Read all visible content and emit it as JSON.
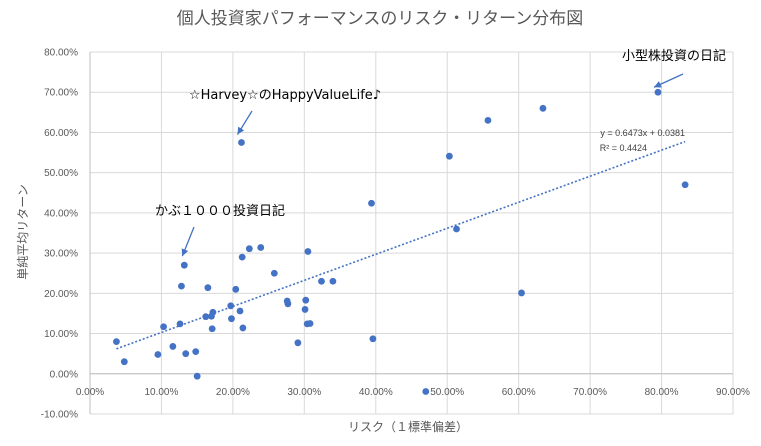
{
  "chart_data": {
    "type": "scatter",
    "title": "個人投資家パフォーマンスのリスク・リターン分布図",
    "xlabel": "リスク（１標準偏差）",
    "ylabel": "単純平均リターン",
    "xlim": [
      0,
      0.9
    ],
    "ylim": [
      -0.1,
      0.8
    ],
    "x_ticks": [
      0,
      0.1,
      0.2,
      0.3,
      0.4,
      0.5,
      0.6,
      0.7,
      0.8,
      0.9
    ],
    "y_ticks": [
      -0.1,
      0,
      0.1,
      0.2,
      0.3,
      0.4,
      0.5,
      0.6,
      0.7,
      0.8
    ],
    "x_tick_labels": [
      "0.00%",
      "10.00%",
      "20.00%",
      "30.00%",
      "40.00%",
      "50.00%",
      "60.00%",
      "70.00%",
      "80.00%",
      "90.00%"
    ],
    "y_tick_labels": [
      "-10.00%",
      "0.00%",
      "10.00%",
      "20.00%",
      "30.00%",
      "40.00%",
      "50.00%",
      "60.00%",
      "70.00%",
      "80.00%"
    ],
    "grid": true,
    "color": "#4472c4",
    "points": [
      [
        0.037,
        0.08
      ],
      [
        0.048,
        0.03
      ],
      [
        0.095,
        0.048
      ],
      [
        0.103,
        0.117
      ],
      [
        0.116,
        0.068
      ],
      [
        0.126,
        0.124
      ],
      [
        0.128,
        0.218
      ],
      [
        0.132,
        0.27
      ],
      [
        0.134,
        0.05
      ],
      [
        0.148,
        0.055
      ],
      [
        0.15,
        -0.006
      ],
      [
        0.162,
        0.142
      ],
      [
        0.165,
        0.214
      ],
      [
        0.17,
        0.143
      ],
      [
        0.171,
        0.112
      ],
      [
        0.172,
        0.153
      ],
      [
        0.197,
        0.169
      ],
      [
        0.198,
        0.137
      ],
      [
        0.204,
        0.21
      ],
      [
        0.21,
        0.156
      ],
      [
        0.212,
        0.575
      ],
      [
        0.213,
        0.29
      ],
      [
        0.214,
        0.114
      ],
      [
        0.223,
        0.311
      ],
      [
        0.239,
        0.314
      ],
      [
        0.258,
        0.25
      ],
      [
        0.276,
        0.181
      ],
      [
        0.277,
        0.174
      ],
      [
        0.291,
        0.077
      ],
      [
        0.301,
        0.16
      ],
      [
        0.302,
        0.183
      ],
      [
        0.304,
        0.124
      ],
      [
        0.305,
        0.304
      ],
      [
        0.308,
        0.125
      ],
      [
        0.324,
        0.23
      ],
      [
        0.34,
        0.23
      ],
      [
        0.394,
        0.424
      ],
      [
        0.396,
        0.087
      ],
      [
        0.47,
        -0.044
      ],
      [
        0.503,
        0.541
      ],
      [
        0.513,
        0.36
      ],
      [
        0.557,
        0.63
      ],
      [
        0.604,
        0.201
      ],
      [
        0.634,
        0.66
      ],
      [
        0.795,
        0.7
      ],
      [
        0.833,
        0.47
      ]
    ],
    "trendline": {
      "slope": 0.6473,
      "intercept": 0.0381,
      "x_range": [
        0.037,
        0.833
      ],
      "equation": "y = 0.6473x + 0.0381",
      "r_squared": "R² = 0.4424"
    },
    "annotations": [
      {
        "text": "小型株投資の日記",
        "target": [
          0.795,
          0.7
        ]
      },
      {
        "text": "☆Harvey☆のHappyValueLife♪",
        "target": [
          0.212,
          0.575
        ]
      },
      {
        "text": "かぶ１０００投資日記",
        "target": [
          0.132,
          0.27
        ]
      }
    ]
  }
}
